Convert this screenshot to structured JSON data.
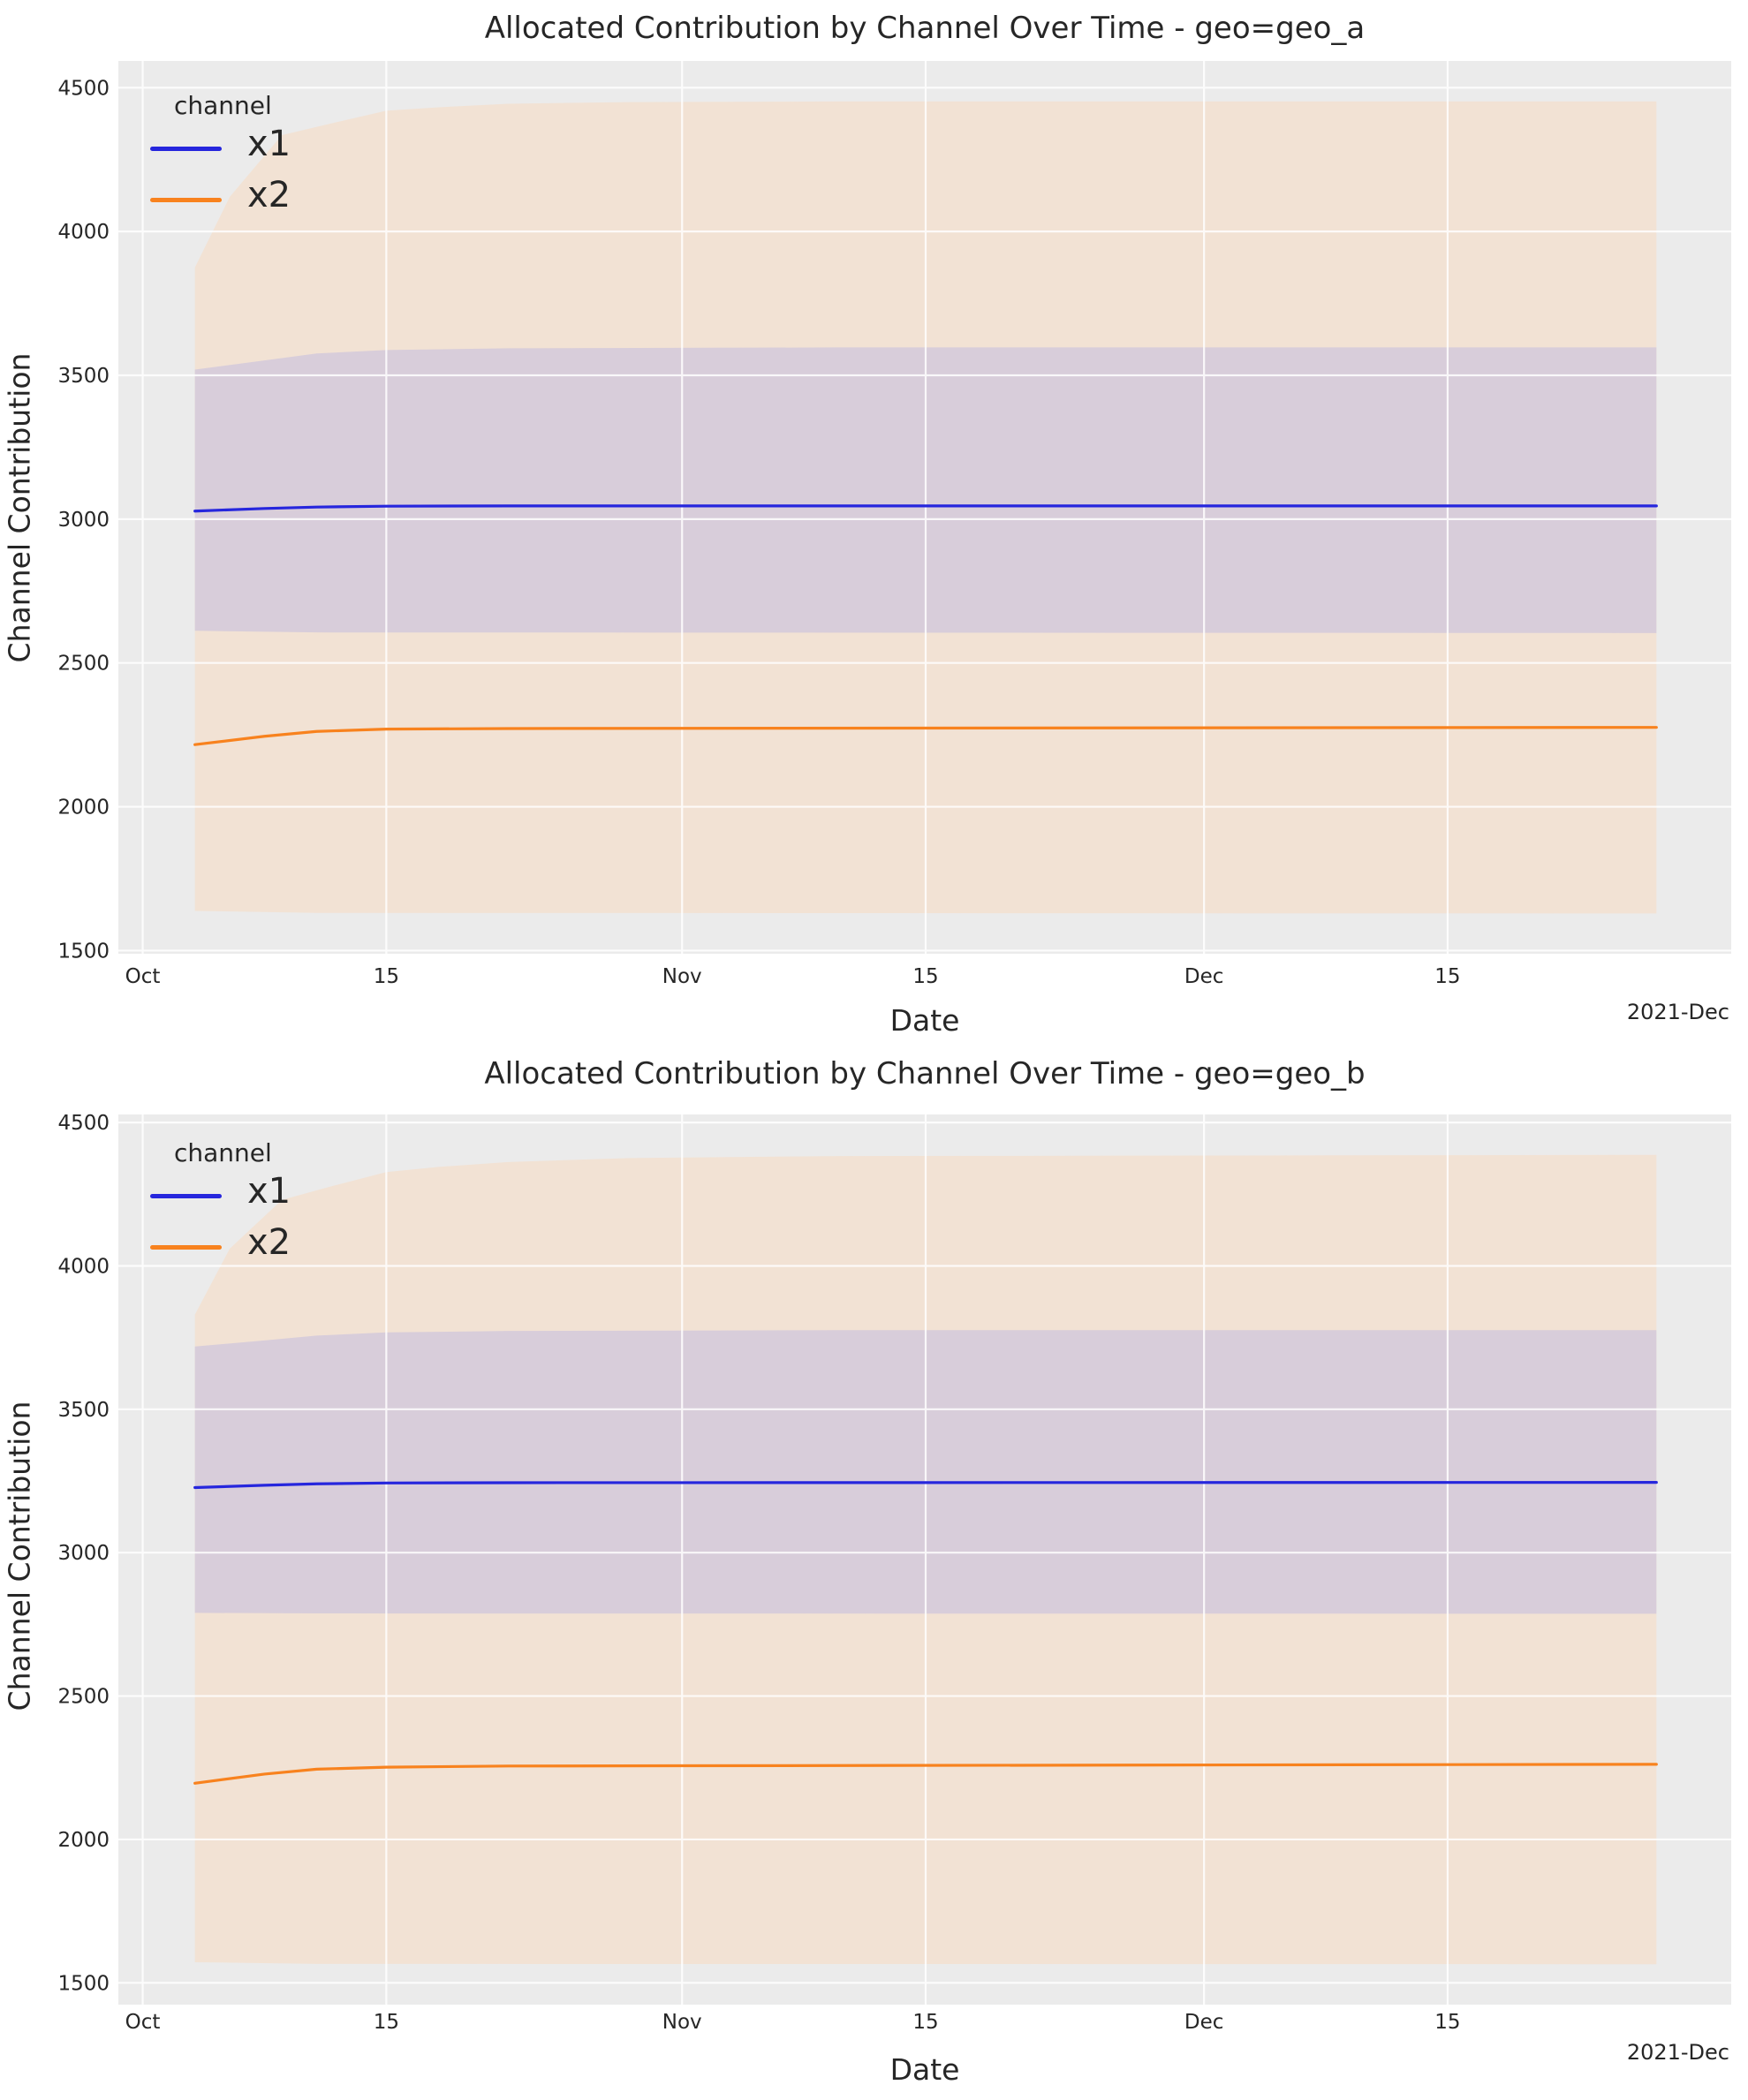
{
  "style": {
    "figure_bg": "#ffffff",
    "axes_bg": "#ebebeb",
    "grid_color": "#ffffff",
    "text_color": "#262626",
    "x1_color": "#2626dd",
    "x2_color": "#f8821e",
    "x1_band_color": "#d8cdda",
    "x2_band_color": "#f2e2d4"
  },
  "chart_data": [
    {
      "type": "line",
      "title": "Allocated Contribution by Channel Over Time - geo=geo_a",
      "xlabel": "Date",
      "ylabel": "Channel Contribution",
      "x_offset_label": "2021-Dec",
      "legend": {
        "title": "channel",
        "entries": [
          {
            "label": "x1"
          },
          {
            "label": "x2"
          }
        ]
      },
      "x_unit": "days since 2021-10-01",
      "xlim_days": [
        -1.4,
        91.3
      ],
      "ylim": [
        1489,
        4593
      ],
      "grid": true,
      "y_ticks": [
        1500,
        2000,
        2500,
        3000,
        3500,
        4000,
        4500
      ],
      "x_ticks": [
        {
          "day": 0,
          "label": "Oct"
        },
        {
          "day": 14,
          "label": "15"
        },
        {
          "day": 31,
          "label": "Nov"
        },
        {
          "day": 45,
          "label": "15"
        },
        {
          "day": 61,
          "label": "Dec"
        },
        {
          "day": 75,
          "label": "15"
        }
      ],
      "series": [
        {
          "name": "x1",
          "line": [
            [
              3,
              3028
            ],
            [
              7,
              3037
            ],
            [
              10,
              3042
            ],
            [
              14,
              3045
            ],
            [
              21,
              3046
            ],
            [
              87,
              3046
            ]
          ],
          "band_upper": [
            [
              3,
              3520
            ],
            [
              7,
              3552
            ],
            [
              10,
              3576
            ],
            [
              14,
              3588
            ],
            [
              21,
              3594
            ],
            [
              40,
              3597
            ],
            [
              87,
              3597
            ]
          ],
          "band_lower": [
            [
              3,
              2612
            ],
            [
              10,
              2606
            ],
            [
              87,
              2604
            ]
          ]
        },
        {
          "name": "x2",
          "line": [
            [
              3,
              2216
            ],
            [
              7,
              2245
            ],
            [
              10,
              2262
            ],
            [
              14,
              2270
            ],
            [
              21,
              2272
            ],
            [
              87,
              2276
            ]
          ],
          "band_upper": [
            [
              3,
              3875
            ],
            [
              5,
              4120
            ],
            [
              8,
              4335
            ],
            [
              11,
              4378
            ],
            [
              14,
              4420
            ],
            [
              17,
              4432
            ],
            [
              21,
              4444
            ],
            [
              28,
              4450
            ],
            [
              40,
              4452
            ],
            [
              87,
              4452
            ]
          ],
          "band_lower": [
            [
              3,
              1638
            ],
            [
              10,
              1631
            ],
            [
              87,
              1629
            ]
          ]
        }
      ]
    },
    {
      "type": "line",
      "title": "Allocated Contribution by Channel Over Time - geo=geo_b",
      "xlabel": "Date",
      "ylabel": "Channel Contribution",
      "x_offset_label": "2021-Dec",
      "legend": {
        "title": "channel",
        "entries": [
          {
            "label": "x1"
          },
          {
            "label": "x2"
          }
        ]
      },
      "x_unit": "days since 2021-10-01",
      "xlim_days": [
        -1.4,
        91.3
      ],
      "ylim": [
        1424,
        4528
      ],
      "grid": true,
      "y_ticks": [
        1500,
        2000,
        2500,
        3000,
        3500,
        4000,
        4500
      ],
      "x_ticks": [
        {
          "day": 0,
          "label": "Oct"
        },
        {
          "day": 14,
          "label": "15"
        },
        {
          "day": 31,
          "label": "Nov"
        },
        {
          "day": 45,
          "label": "15"
        },
        {
          "day": 61,
          "label": "Dec"
        },
        {
          "day": 75,
          "label": "15"
        }
      ],
      "series": [
        {
          "name": "x1",
          "line": [
            [
              3,
              3227
            ],
            [
              7,
              3235
            ],
            [
              10,
              3240
            ],
            [
              14,
              3243
            ],
            [
              21,
              3244
            ],
            [
              87,
              3245
            ]
          ],
          "band_upper": [
            [
              3,
              3719
            ],
            [
              7,
              3740
            ],
            [
              10,
              3757
            ],
            [
              14,
              3768
            ],
            [
              21,
              3773
            ],
            [
              40,
              3776
            ],
            [
              87,
              3776
            ]
          ],
          "band_lower": [
            [
              3,
              2790
            ],
            [
              10,
              2788
            ],
            [
              87,
              2787
            ]
          ]
        },
        {
          "name": "x2",
          "line": [
            [
              3,
              2196
            ],
            [
              7,
              2228
            ],
            [
              10,
              2245
            ],
            [
              14,
              2252
            ],
            [
              21,
              2256
            ],
            [
              87,
              2262
            ]
          ],
          "band_upper": [
            [
              3,
              3830
            ],
            [
              5,
              4060
            ],
            [
              8,
              4230
            ],
            [
              11,
              4280
            ],
            [
              14,
              4327
            ],
            [
              17,
              4345
            ],
            [
              21,
              4362
            ],
            [
              28,
              4376
            ],
            [
              40,
              4383
            ],
            [
              87,
              4387
            ]
          ],
          "band_lower": [
            [
              3,
              1572
            ],
            [
              10,
              1566
            ],
            [
              87,
              1565
            ]
          ]
        }
      ]
    }
  ]
}
